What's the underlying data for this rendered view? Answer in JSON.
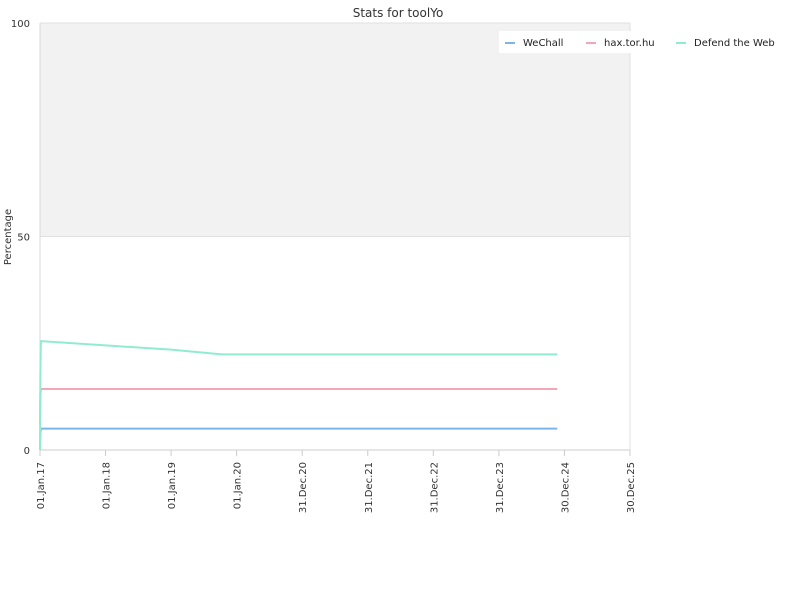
{
  "chart_data": {
    "type": "line",
    "title": "Stats for toolYo",
    "xlabel": "",
    "ylabel": "Percentage",
    "ylim": [
      0,
      100
    ],
    "yticks": [
      0,
      50,
      100
    ],
    "xlim": [
      "2017-01-01",
      "2025-12-30"
    ],
    "xticks": [
      {
        "date": "2017-01-01",
        "label": "01.Jan.17"
      },
      {
        "date": "2018-01-01",
        "label": "01.Jan.18"
      },
      {
        "date": "2019-01-01",
        "label": "01.Jan.19"
      },
      {
        "date": "2020-01-01",
        "label": "01.Jan.20"
      },
      {
        "date": "2020-12-31",
        "label": "31.Dec.20"
      },
      {
        "date": "2021-12-31",
        "label": "31.Dec.21"
      },
      {
        "date": "2022-12-31",
        "label": "31.Dec.22"
      },
      {
        "date": "2023-12-31",
        "label": "31.Dec.23"
      },
      {
        "date": "2024-12-30",
        "label": "30.Dec.24"
      },
      {
        "date": "2025-12-30",
        "label": "30.Dec.25"
      }
    ],
    "background_bands": [
      {
        "from": 50,
        "to": 100,
        "color": "#f2f2f2"
      }
    ],
    "grid": true,
    "legend_position": "top-right",
    "series": [
      {
        "name": "WeChall",
        "color": "#7cb5ec",
        "points": [
          [
            "2017-01-01",
            0
          ],
          [
            "2017-01-03",
            4
          ],
          [
            "2017-01-06",
            5
          ],
          [
            "2024-11-20",
            5
          ]
        ]
      },
      {
        "name": "hax.tor.hu",
        "color": "#f4a6b8",
        "points": [
          [
            "2017-01-01",
            6
          ],
          [
            "2017-01-03",
            13
          ],
          [
            "2017-01-06",
            14.3
          ],
          [
            "2024-11-20",
            14.3
          ]
        ]
      },
      {
        "name": "Defend the Web",
        "color": "#90ecd0",
        "points": [
          [
            "2017-01-01",
            0
          ],
          [
            "2017-01-03",
            18
          ],
          [
            "2017-01-06",
            25.5
          ],
          [
            "2018-01-01",
            24.5
          ],
          [
            "2019-01-01",
            23.5
          ],
          [
            "2019-10-10",
            22.4
          ],
          [
            "2024-11-20",
            22.4
          ]
        ]
      }
    ]
  }
}
